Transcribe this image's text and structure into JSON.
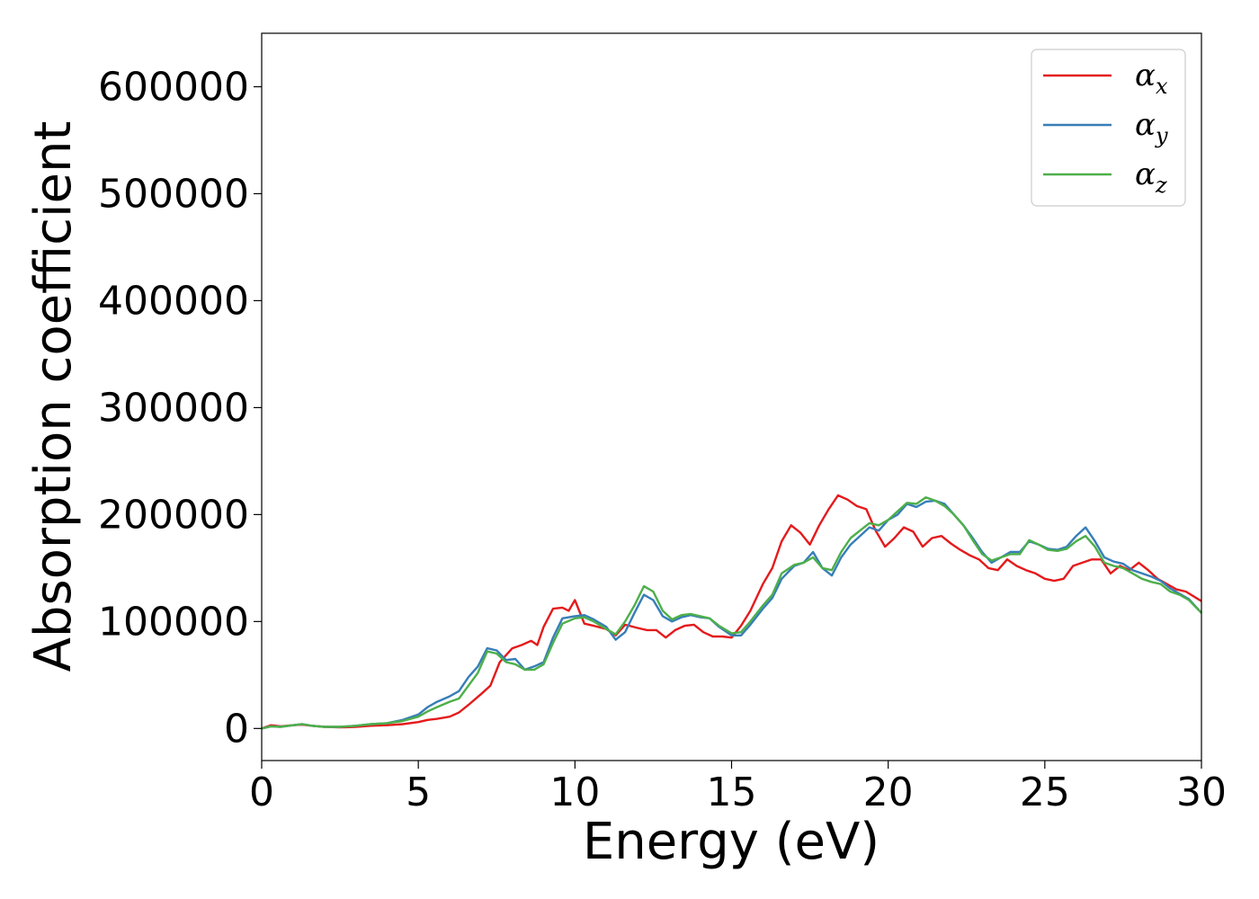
{
  "chart_data": {
    "type": "line",
    "title": "",
    "xlabel": "Energy (eV)",
    "ylabel": "Absorption coefficient",
    "xlim": [
      0,
      30
    ],
    "ylim": [
      -30000,
      650000
    ],
    "xticks": [
      0,
      5,
      10,
      15,
      20,
      25,
      30
    ],
    "yticks": [
      0,
      100000,
      200000,
      300000,
      400000,
      500000,
      600000
    ],
    "grid": false,
    "legend_position": "top-right",
    "series": [
      {
        "name": "α",
        "subscript": "x",
        "color": "#e41a1c",
        "x": [
          0,
          0.3,
          0.6,
          1.0,
          1.3,
          1.6,
          2.0,
          2.5,
          3.0,
          3.5,
          4.0,
          4.5,
          5.0,
          5.3,
          5.6,
          6.0,
          6.3,
          6.6,
          7.0,
          7.3,
          7.6,
          8.0,
          8.3,
          8.6,
          8.8,
          9.0,
          9.3,
          9.6,
          9.8,
          10.0,
          10.3,
          10.6,
          11.0,
          11.3,
          11.6,
          12.0,
          12.3,
          12.6,
          12.9,
          13.2,
          13.5,
          13.8,
          14.1,
          14.4,
          14.7,
          15.0,
          15.3,
          15.6,
          16.0,
          16.3,
          16.6,
          16.9,
          17.2,
          17.5,
          17.8,
          18.1,
          18.4,
          18.7,
          19.0,
          19.3,
          19.6,
          19.9,
          20.2,
          20.5,
          20.8,
          21.1,
          21.4,
          21.7,
          22.0,
          22.3,
          22.6,
          22.9,
          23.2,
          23.5,
          23.8,
          24.1,
          24.4,
          24.7,
          25.0,
          25.3,
          25.6,
          25.9,
          26.2,
          26.5,
          26.8,
          27.1,
          27.4,
          27.7,
          28.0,
          28.3,
          28.6,
          28.9,
          29.2,
          29.5,
          30.0
        ],
        "y": [
          0,
          3000,
          2000,
          3000,
          3500,
          2500,
          1500,
          1000,
          1500,
          2500,
          3000,
          4000,
          6000,
          8000,
          9000,
          11000,
          15000,
          22000,
          32000,
          40000,
          62000,
          75000,
          78000,
          82000,
          78000,
          95000,
          112000,
          113000,
          110000,
          120000,
          98000,
          96000,
          93000,
          87000,
          97000,
          94000,
          92000,
          92000,
          85000,
          92000,
          96000,
          97000,
          90000,
          86000,
          86000,
          85000,
          96000,
          110000,
          135000,
          150000,
          175000,
          190000,
          183000,
          172000,
          190000,
          205000,
          218000,
          214000,
          208000,
          205000,
          185000,
          170000,
          178000,
          188000,
          184000,
          170000,
          178000,
          180000,
          173000,
          167000,
          162000,
          158000,
          150000,
          148000,
          158000,
          152000,
          148000,
          145000,
          140000,
          138000,
          140000,
          152000,
          155000,
          158000,
          158000,
          145000,
          152000,
          148000,
          155000,
          148000,
          140000,
          135000,
          130000,
          128000,
          119000
        ]
      },
      {
        "name": "α",
        "subscript": "y",
        "color": "#377eb8",
        "x": [
          0,
          0.3,
          0.6,
          1.0,
          1.3,
          1.6,
          2.0,
          2.5,
          3.0,
          3.5,
          4.0,
          4.5,
          5.0,
          5.3,
          5.6,
          6.0,
          6.3,
          6.6,
          6.9,
          7.2,
          7.5,
          7.8,
          8.1,
          8.4,
          8.7,
          9.0,
          9.3,
          9.6,
          10.0,
          10.3,
          10.6,
          11.0,
          11.3,
          11.6,
          11.9,
          12.2,
          12.5,
          12.8,
          13.1,
          13.4,
          13.7,
          14.0,
          14.3,
          14.6,
          15.0,
          15.3,
          15.6,
          16.0,
          16.3,
          16.6,
          17.0,
          17.3,
          17.6,
          17.9,
          18.2,
          18.5,
          18.8,
          19.1,
          19.4,
          19.7,
          20.0,
          20.3,
          20.6,
          20.9,
          21.2,
          21.5,
          21.8,
          22.1,
          22.4,
          22.7,
          23.0,
          23.3,
          23.6,
          23.9,
          24.2,
          24.5,
          24.8,
          25.1,
          25.4,
          25.7,
          26.0,
          26.3,
          26.6,
          26.9,
          27.2,
          27.5,
          27.8,
          28.1,
          28.4,
          28.7,
          29.0,
          29.3,
          29.6,
          30.0
        ],
        "y": [
          0,
          2000,
          1500,
          3000,
          4000,
          2500,
          1500,
          1500,
          2500,
          4000,
          5000,
          8000,
          13000,
          20000,
          25000,
          30000,
          35000,
          48000,
          58000,
          75000,
          73000,
          64000,
          65000,
          55000,
          58000,
          62000,
          85000,
          103000,
          105000,
          106000,
          102000,
          95000,
          83000,
          90000,
          108000,
          125000,
          120000,
          105000,
          100000,
          104000,
          106000,
          104000,
          103000,
          95000,
          87000,
          87000,
          97000,
          112000,
          122000,
          140000,
          152000,
          155000,
          165000,
          150000,
          143000,
          160000,
          172000,
          180000,
          188000,
          185000,
          195000,
          200000,
          210000,
          207000,
          212000,
          213000,
          210000,
          200000,
          190000,
          178000,
          165000,
          155000,
          160000,
          165000,
          165000,
          175000,
          172000,
          168000,
          167000,
          170000,
          180000,
          188000,
          175000,
          160000,
          156000,
          154000,
          148000,
          145000,
          142000,
          138000,
          131000,
          126000,
          121000,
          108000
        ]
      },
      {
        "name": "α",
        "subscript": "z",
        "color": "#4daf4a",
        "x": [
          0,
          0.3,
          0.6,
          1.0,
          1.3,
          1.6,
          2.0,
          2.5,
          3.0,
          3.5,
          4.0,
          4.5,
          5.0,
          5.3,
          5.6,
          6.0,
          6.3,
          6.6,
          6.9,
          7.2,
          7.5,
          7.8,
          8.1,
          8.4,
          8.7,
          9.0,
          9.3,
          9.6,
          10.0,
          10.3,
          10.6,
          11.0,
          11.3,
          11.6,
          11.9,
          12.2,
          12.5,
          12.8,
          13.1,
          13.4,
          13.7,
          14.0,
          14.3,
          14.6,
          15.0,
          15.3,
          15.6,
          16.0,
          16.3,
          16.6,
          17.0,
          17.3,
          17.6,
          17.9,
          18.2,
          18.5,
          18.8,
          19.1,
          19.4,
          19.7,
          20.0,
          20.3,
          20.6,
          20.9,
          21.2,
          21.5,
          21.8,
          22.1,
          22.4,
          22.7,
          23.0,
          23.3,
          23.6,
          23.9,
          24.2,
          24.5,
          24.8,
          25.1,
          25.4,
          25.7,
          26.0,
          26.3,
          26.6,
          26.9,
          27.2,
          27.5,
          27.8,
          28.1,
          28.4,
          28.7,
          29.0,
          29.3,
          29.6,
          30.0
        ],
        "y": [
          0,
          2000,
          1500,
          3000,
          4000,
          2500,
          1500,
          1500,
          2500,
          4000,
          5000,
          7000,
          11000,
          16000,
          20000,
          25000,
          28000,
          40000,
          52000,
          72000,
          70000,
          62000,
          60000,
          55000,
          55000,
          60000,
          80000,
          98000,
          103000,
          104000,
          100000,
          93000,
          88000,
          100000,
          115000,
          133000,
          128000,
          110000,
          102000,
          106000,
          107000,
          105000,
          103000,
          96000,
          89000,
          90000,
          100000,
          115000,
          125000,
          145000,
          153000,
          155000,
          160000,
          150000,
          148000,
          165000,
          178000,
          185000,
          192000,
          190000,
          195000,
          203000,
          211000,
          210000,
          216000,
          213000,
          208000,
          200000,
          190000,
          176000,
          163000,
          157000,
          160000,
          163000,
          163000,
          176000,
          172000,
          167000,
          166000,
          168000,
          175000,
          180000,
          170000,
          155000,
          152000,
          150000,
          145000,
          140000,
          137000,
          135000,
          128000,
          125000,
          120000,
          108000
        ]
      }
    ]
  }
}
